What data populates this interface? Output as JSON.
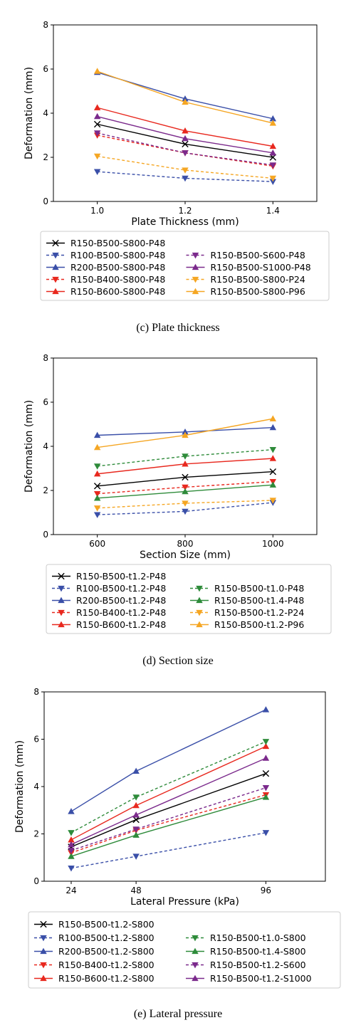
{
  "chart_data": [
    {
      "type": "line",
      "caption": "(c) Plate thickness",
      "xlabel": "Plate Thickness (mm)",
      "ylabel": "Deformation (mm)",
      "x": [
        1.0,
        1.2,
        1.4
      ],
      "xticks": [
        "1.0",
        "1.2",
        "1.4"
      ],
      "xlim": [
        0.9,
        1.5
      ],
      "ylim": [
        0,
        8
      ],
      "yticks": [
        "0",
        "2",
        "4",
        "6",
        "8"
      ],
      "grid": false,
      "legend_position": "bottom",
      "series": [
        {
          "name": "R150-B500-S800-P48",
          "values": [
            3.5,
            2.6,
            2.0
          ],
          "color": "#000000",
          "dash": false,
          "marker": "x"
        },
        {
          "name": "R100-B500-S800-P48",
          "values": [
            1.35,
            1.05,
            0.9
          ],
          "color": "#3a4fa8",
          "dash": true,
          "marker": "v"
        },
        {
          "name": "R200-B500-S800-P48",
          "values": [
            5.85,
            4.65,
            3.75
          ],
          "color": "#3a4fa8",
          "dash": false,
          "marker": "^"
        },
        {
          "name": "R150-B400-S800-P48",
          "values": [
            3.0,
            2.2,
            1.6
          ],
          "color": "#e8281e",
          "dash": true,
          "marker": "v"
        },
        {
          "name": "R150-B600-S800-P48",
          "values": [
            4.25,
            3.2,
            2.5
          ],
          "color": "#e8281e",
          "dash": false,
          "marker": "^"
        },
        {
          "name": "R150-B500-S600-P48",
          "values": [
            3.1,
            2.2,
            1.65
          ],
          "color": "#7b2a8c",
          "dash": true,
          "marker": "v"
        },
        {
          "name": "R150-B500-S1000-P48",
          "values": [
            3.85,
            2.85,
            2.2
          ],
          "color": "#7b2a8c",
          "dash": false,
          "marker": "^"
        },
        {
          "name": "R150-B500-S800-P24",
          "values": [
            2.05,
            1.42,
            1.05
          ],
          "color": "#f5a623",
          "dash": true,
          "marker": "v"
        },
        {
          "name": "R150-B500-S800-P96",
          "values": [
            5.9,
            4.5,
            3.55
          ],
          "color": "#f5a623",
          "dash": false,
          "marker": "^"
        }
      ]
    },
    {
      "type": "line",
      "caption": "(d) Section size",
      "xlabel": "Section Size (mm)",
      "ylabel": "Deformation (mm)",
      "x": [
        600,
        800,
        1000
      ],
      "xticks": [
        "600",
        "800",
        "1000"
      ],
      "xlim": [
        500,
        1100
      ],
      "ylim": [
        0,
        8
      ],
      "yticks": [
        "0",
        "2",
        "4",
        "6",
        "8"
      ],
      "grid": false,
      "legend_position": "bottom",
      "series": [
        {
          "name": "R150-B500-t1.2-P48",
          "values": [
            2.2,
            2.6,
            2.85
          ],
          "color": "#000000",
          "dash": false,
          "marker": "x"
        },
        {
          "name": "R100-B500-t1.2-P48",
          "values": [
            0.9,
            1.05,
            1.45
          ],
          "color": "#3a4fa8",
          "dash": true,
          "marker": "v"
        },
        {
          "name": "R200-B500-t1.2-P48",
          "values": [
            4.5,
            4.65,
            4.85
          ],
          "color": "#3a4fa8",
          "dash": false,
          "marker": "^"
        },
        {
          "name": "R150-B400-t1.2-P48",
          "values": [
            1.85,
            2.15,
            2.4
          ],
          "color": "#e8281e",
          "dash": true,
          "marker": "v"
        },
        {
          "name": "R150-B600-t1.2-P48",
          "values": [
            2.75,
            3.2,
            3.45
          ],
          "color": "#e8281e",
          "dash": false,
          "marker": "^"
        },
        {
          "name": "R150-B500-t1.0-P48",
          "values": [
            3.1,
            3.55,
            3.85
          ],
          "color": "#2e8b3a",
          "dash": true,
          "marker": "v"
        },
        {
          "name": "R150-B500-t1.4-P48",
          "values": [
            1.65,
            1.95,
            2.25
          ],
          "color": "#2e8b3a",
          "dash": false,
          "marker": "^"
        },
        {
          "name": "R150-B500-t1.2-P24",
          "values": [
            1.2,
            1.42,
            1.55
          ],
          "color": "#f5a623",
          "dash": true,
          "marker": "v"
        },
        {
          "name": "R150-B500-t1.2-P96",
          "values": [
            3.95,
            4.5,
            5.25
          ],
          "color": "#f5a623",
          "dash": false,
          "marker": "^"
        }
      ]
    },
    {
      "type": "line",
      "caption": "(e) Lateral pressure",
      "xlabel": "Lateral Pressure (kPa)",
      "ylabel": "Deformation (mm)",
      "x": [
        24,
        48,
        96
      ],
      "xticks": [
        "24",
        "48",
        "96"
      ],
      "xlim": [
        14,
        118
      ],
      "ylim": [
        0,
        8
      ],
      "yticks": [
        "0",
        "2",
        "4",
        "6",
        "8"
      ],
      "grid": false,
      "legend_position": "bottom",
      "series": [
        {
          "name": "R150-B500-t1.2-S800",
          "values": [
            1.45,
            2.6,
            4.55
          ],
          "color": "#000000",
          "dash": false,
          "marker": "x"
        },
        {
          "name": "R100-B500-t1.2-S800",
          "values": [
            0.55,
            1.05,
            2.05
          ],
          "color": "#3a4fa8",
          "dash": true,
          "marker": "v"
        },
        {
          "name": "R200-B500-t1.2-S800",
          "values": [
            2.95,
            4.65,
            7.25
          ],
          "color": "#3a4fa8",
          "dash": false,
          "marker": "^"
        },
        {
          "name": "R150-B400-t1.2-S800",
          "values": [
            1.2,
            2.15,
            3.65
          ],
          "color": "#e8281e",
          "dash": true,
          "marker": "v"
        },
        {
          "name": "R150-B600-t1.2-S800",
          "values": [
            1.75,
            3.2,
            5.7
          ],
          "color": "#e8281e",
          "dash": false,
          "marker": "^"
        },
        {
          "name": "R150-B500-t1.0-S800",
          "values": [
            2.05,
            3.55,
            5.9
          ],
          "color": "#2e8b3a",
          "dash": true,
          "marker": "v"
        },
        {
          "name": "R150-B500-t1.4-S800",
          "values": [
            1.05,
            1.95,
            3.55
          ],
          "color": "#2e8b3a",
          "dash": false,
          "marker": "^"
        },
        {
          "name": "R150-B500-t1.2-S600",
          "values": [
            1.3,
            2.2,
            3.95
          ],
          "color": "#7b2a8c",
          "dash": true,
          "marker": "v"
        },
        {
          "name": "R150-B500-t1.2-S1000",
          "values": [
            1.55,
            2.8,
            5.2
          ],
          "color": "#7b2a8c",
          "dash": false,
          "marker": "^"
        }
      ]
    }
  ]
}
